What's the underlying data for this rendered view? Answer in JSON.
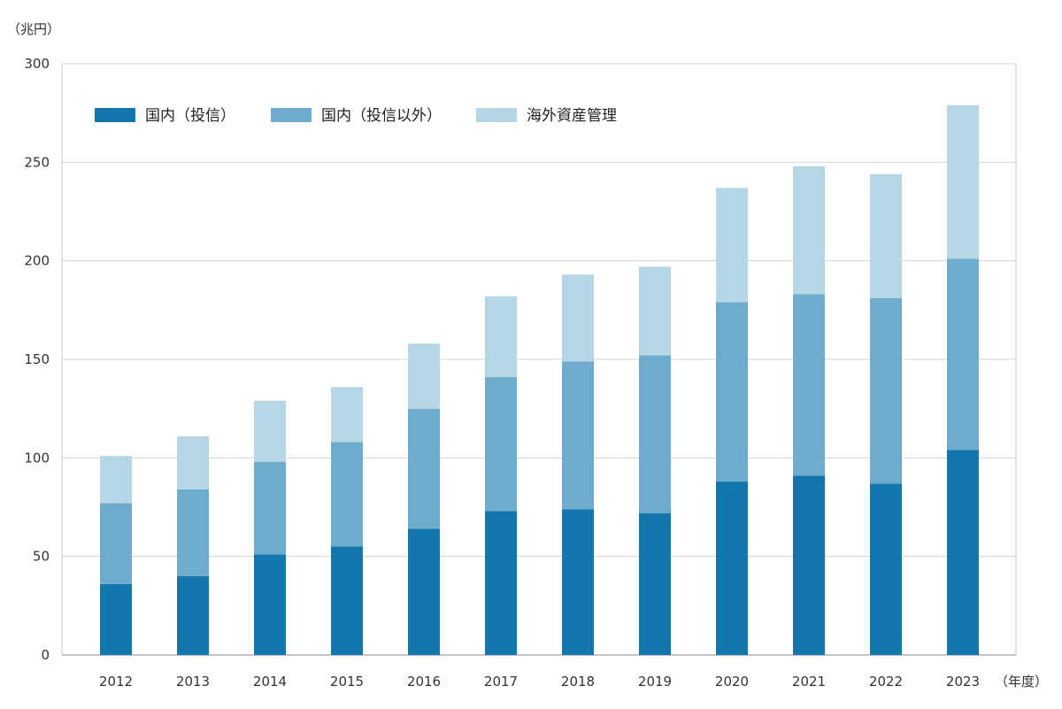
{
  "chart_data": {
    "type": "bar",
    "stacked": true,
    "y_unit_label": "（兆円）",
    "x_unit_label": "（年度）",
    "categories": [
      "2012",
      "2013",
      "2014",
      "2015",
      "2016",
      "2017",
      "2018",
      "2019",
      "2020",
      "2021",
      "2022",
      "2023"
    ],
    "series": [
      {
        "name": "国内（投信）",
        "color": "#1376ad",
        "values": [
          36,
          40,
          51,
          55,
          64,
          73,
          74,
          72,
          88,
          91,
          87,
          104
        ]
      },
      {
        "name": "国内（投信以外）",
        "color": "#6fabcc",
        "values": [
          41,
          44,
          47,
          53,
          61,
          68,
          75,
          80,
          91,
          92,
          94,
          97
        ]
      },
      {
        "name": "海外資産管理",
        "color": "#b6d6e6",
        "values": [
          24,
          27,
          31,
          28,
          33,
          41,
          44,
          45,
          58,
          65,
          63,
          78
        ]
      }
    ],
    "ylim": [
      0,
      300
    ],
    "yticks": [
      "0",
      "50",
      "100",
      "150",
      "200",
      "250",
      "300"
    ],
    "grid": true,
    "legend_position": "top-left"
  }
}
